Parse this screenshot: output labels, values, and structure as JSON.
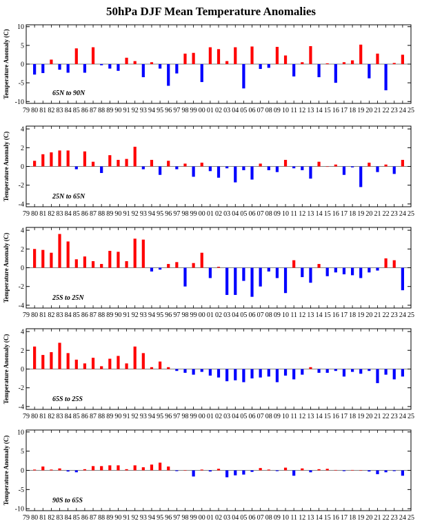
{
  "title": "50hPa DJF Mean Temperature Anomalies",
  "colors": {
    "positive": "#ff0000",
    "negative": "#0000ff",
    "axis": "#000000"
  },
  "x_tick_labels": [
    "79",
    "80",
    "81",
    "82",
    "83",
    "84",
    "85",
    "86",
    "87",
    "88",
    "89",
    "90",
    "91",
    "92",
    "93",
    "94",
    "95",
    "96",
    "97",
    "98",
    "99",
    "00",
    "01",
    "02",
    "03",
    "04",
    "05",
    "06",
    "07",
    "08",
    "09",
    "10",
    "11",
    "12",
    "13",
    "14",
    "15",
    "16",
    "17",
    "18",
    "19",
    "20",
    "21",
    "22",
    "23",
    "24",
    "25"
  ],
  "chart_data": [
    {
      "type": "bar",
      "region": "65N to 90N",
      "ylabel": "Temperature Anomaly (C)",
      "ylim": [
        -10.5,
        10.5
      ],
      "yticks": [
        -10,
        -5,
        0,
        5,
        10
      ],
      "categories": [
        "80",
        "81",
        "82",
        "83",
        "84",
        "85",
        "86",
        "87",
        "88",
        "89",
        "90",
        "91",
        "92",
        "93",
        "94",
        "95",
        "96",
        "97",
        "98",
        "99",
        "00",
        "01",
        "02",
        "03",
        "04",
        "05",
        "06",
        "07",
        "08",
        "09",
        "10",
        "11",
        "12",
        "13",
        "14",
        "15",
        "16",
        "17",
        "18",
        "19",
        "20",
        "21",
        "22",
        "23",
        "24"
      ],
      "values": [
        -2.8,
        -2.4,
        1.2,
        -1.5,
        -2.3,
        4.2,
        -2.3,
        4.5,
        -0.3,
        -1.2,
        -1.8,
        1.7,
        0.8,
        -3.5,
        0.5,
        -1.2,
        -5.8,
        -2.5,
        2.8,
        3.0,
        -4.8,
        4.5,
        4.0,
        0.8,
        4.5,
        -6.5,
        4.7,
        -1.3,
        -1.0,
        4.6,
        2.3,
        -3.3,
        0.5,
        4.8,
        -3.5,
        0.2,
        -5.0,
        0.5,
        1.0,
        5.2,
        -3.8,
        2.8,
        -7.0,
        0.3,
        2.5
      ]
    },
    {
      "type": "bar",
      "region": "25N to 65N",
      "ylabel": "Temperature Anomaly (C)",
      "ylim": [
        -4.3,
        4.3
      ],
      "yticks": [
        -4,
        -2,
        0,
        2,
        4
      ],
      "categories": [
        "80",
        "81",
        "82",
        "83",
        "84",
        "85",
        "86",
        "87",
        "88",
        "89",
        "90",
        "91",
        "92",
        "93",
        "94",
        "95",
        "96",
        "97",
        "98",
        "99",
        "00",
        "01",
        "02",
        "03",
        "04",
        "05",
        "06",
        "07",
        "08",
        "09",
        "10",
        "11",
        "12",
        "13",
        "14",
        "15",
        "16",
        "17",
        "18",
        "19",
        "20",
        "21",
        "22",
        "23",
        "24"
      ],
      "values": [
        0.6,
        1.3,
        1.5,
        1.7,
        1.7,
        -0.3,
        1.6,
        0.5,
        -0.7,
        1.2,
        0.7,
        0.8,
        2.1,
        -0.3,
        0.7,
        -0.9,
        0.6,
        -0.3,
        0.3,
        -1.1,
        0.4,
        -0.5,
        -1.2,
        -0.2,
        -1.7,
        -0.4,
        -1.4,
        0.3,
        -0.4,
        -0.6,
        0.7,
        -0.2,
        -0.4,
        -1.3,
        0.5,
        0.0,
        0.2,
        -0.9,
        -0.1,
        -2.2,
        0.4,
        -0.6,
        0.2,
        -0.8,
        0.7
      ]
    },
    {
      "type": "bar",
      "region": "25S to 25N",
      "ylabel": "Temperature Anomaly (C)",
      "ylim": [
        -4.3,
        4.3
      ],
      "yticks": [
        -4,
        -2,
        0,
        2,
        4
      ],
      "categories": [
        "80",
        "81",
        "82",
        "83",
        "84",
        "85",
        "86",
        "87",
        "88",
        "89",
        "90",
        "91",
        "92",
        "93",
        "94",
        "95",
        "96",
        "97",
        "98",
        "99",
        "00",
        "01",
        "02",
        "03",
        "04",
        "05",
        "06",
        "07",
        "08",
        "09",
        "10",
        "11",
        "12",
        "13",
        "14",
        "15",
        "16",
        "17",
        "18",
        "19",
        "20",
        "21",
        "22",
        "23",
        "24"
      ],
      "values": [
        2.0,
        1.9,
        1.6,
        3.6,
        2.8,
        0.9,
        1.2,
        0.7,
        0.4,
        1.8,
        1.7,
        0.7,
        3.1,
        3.0,
        -0.4,
        -0.2,
        0.4,
        0.6,
        -2.0,
        0.5,
        1.6,
        -1.1,
        0.1,
        -2.9,
        -2.9,
        -1.4,
        -3.1,
        -2.0,
        -0.4,
        -1.1,
        -2.7,
        0.8,
        -1.0,
        -1.6,
        0.4,
        -0.9,
        -0.5,
        -0.7,
        -0.8,
        -1.1,
        -0.5,
        -0.3,
        1.0,
        0.8,
        -2.4
      ]
    },
    {
      "type": "bar",
      "region": "65S to 25S",
      "ylabel": "Temperature Anomaly (C)",
      "ylim": [
        -4.3,
        4.3
      ],
      "yticks": [
        -4,
        -2,
        0,
        2,
        4
      ],
      "categories": [
        "80",
        "81",
        "82",
        "83",
        "84",
        "85",
        "86",
        "87",
        "88",
        "89",
        "90",
        "91",
        "92",
        "93",
        "94",
        "95",
        "96",
        "97",
        "98",
        "99",
        "00",
        "01",
        "02",
        "03",
        "04",
        "05",
        "06",
        "07",
        "08",
        "09",
        "10",
        "11",
        "12",
        "13",
        "14",
        "15",
        "16",
        "17",
        "18",
        "19",
        "20",
        "21",
        "22",
        "23",
        "24"
      ],
      "values": [
        2.4,
        1.5,
        1.8,
        2.8,
        1.7,
        1.0,
        0.6,
        1.2,
        0.3,
        1.1,
        1.4,
        0.6,
        2.4,
        1.7,
        0.2,
        0.8,
        0.2,
        -0.2,
        -0.4,
        -0.6,
        -0.3,
        -0.7,
        -0.9,
        -1.3,
        -1.2,
        -1.4,
        -1.0,
        -0.9,
        -0.8,
        -1.4,
        -0.7,
        -1.1,
        -0.6,
        0.2,
        -0.4,
        -0.4,
        -0.2,
        -0.8,
        -0.3,
        -0.5,
        -0.2,
        -1.5,
        -0.6,
        -1.1,
        -0.8
      ]
    },
    {
      "type": "bar",
      "region": "90S to 65S",
      "ylabel": "Temperature Anomaly (C)",
      "ylim": [
        -10.5,
        10.5
      ],
      "yticks": [
        -10,
        -5,
        0,
        5,
        10
      ],
      "categories": [
        "80",
        "81",
        "82",
        "83",
        "84",
        "85",
        "86",
        "87",
        "88",
        "89",
        "90",
        "91",
        "92",
        "93",
        "94",
        "95",
        "96",
        "97",
        "98",
        "99",
        "00",
        "01",
        "02",
        "03",
        "04",
        "05",
        "06",
        "07",
        "08",
        "09",
        "10",
        "11",
        "12",
        "13",
        "14",
        "15",
        "16",
        "17",
        "18",
        "19",
        "20",
        "21",
        "22",
        "23",
        "24"
      ],
      "values": [
        0.2,
        1.0,
        0.2,
        0.5,
        -0.3,
        -0.5,
        0.3,
        1.1,
        1.1,
        1.3,
        1.3,
        0.3,
        1.3,
        0.8,
        1.5,
        2.0,
        1.0,
        -0.2,
        0.0,
        -1.6,
        0.2,
        -0.3,
        0.4,
        -1.8,
        -1.3,
        -1.1,
        -0.4,
        0.6,
        0.2,
        -0.2,
        0.7,
        -1.4,
        0.5,
        -0.5,
        0.3,
        0.4,
        0.1,
        -0.2,
        0.1,
        0.0,
        -0.3,
        -1.0,
        -0.5,
        -0.2,
        -1.4
      ]
    }
  ]
}
